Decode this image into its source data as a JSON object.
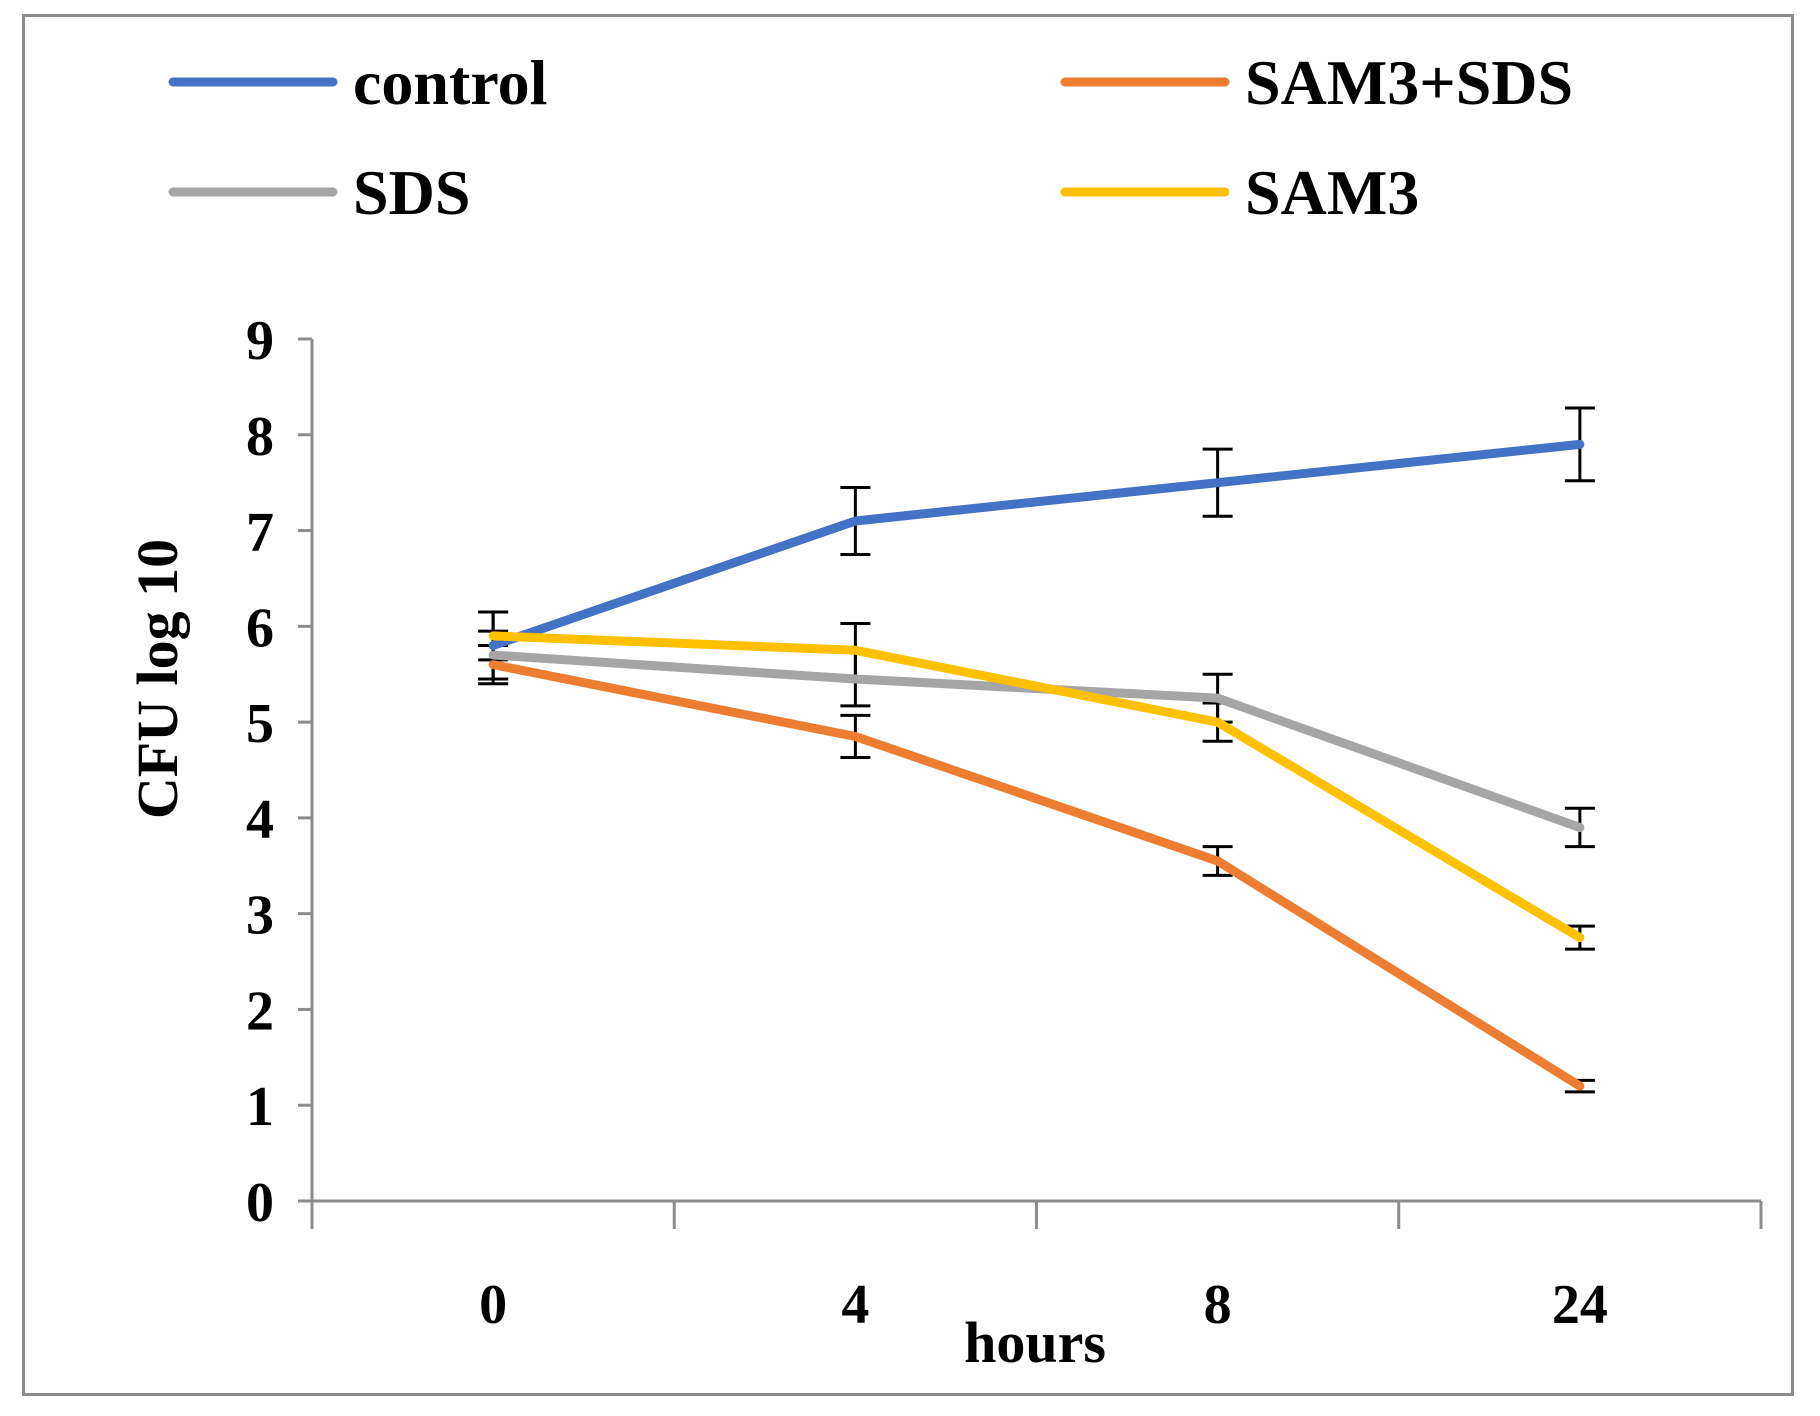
{
  "chart_data": {
    "type": "line",
    "xlabel": "hours",
    "ylabel": "CFU log 10",
    "categories": [
      "0",
      "4",
      "8",
      "24"
    ],
    "ylim": [
      0,
      9
    ],
    "yticks": [
      0,
      1,
      2,
      3,
      4,
      5,
      6,
      7,
      8,
      9
    ],
    "grid": false,
    "legend_position": "top",
    "series": [
      {
        "name": "control",
        "color": "#4472C4",
        "values": [
          5.8,
          7.1,
          7.5,
          7.9
        ],
        "errors": [
          0.35,
          0.35,
          0.35,
          0.38
        ]
      },
      {
        "name": "SAM3+SDS",
        "color": "#ED7D31",
        "values": [
          5.6,
          4.85,
          3.55,
          1.2
        ],
        "errors": [
          0.2,
          0.22,
          0.15,
          0.06
        ]
      },
      {
        "name": "SDS",
        "color": "#A5A5A5",
        "values": [
          5.7,
          5.45,
          5.25,
          3.9
        ],
        "errors": [
          0.25,
          0.28,
          0.25,
          0.2
        ]
      },
      {
        "name": "SAM3",
        "color": "#FFC000",
        "values": [
          5.9,
          5.75,
          5.0,
          2.75
        ],
        "errors": [
          0.25,
          0.28,
          0.2,
          0.12
        ]
      }
    ]
  }
}
